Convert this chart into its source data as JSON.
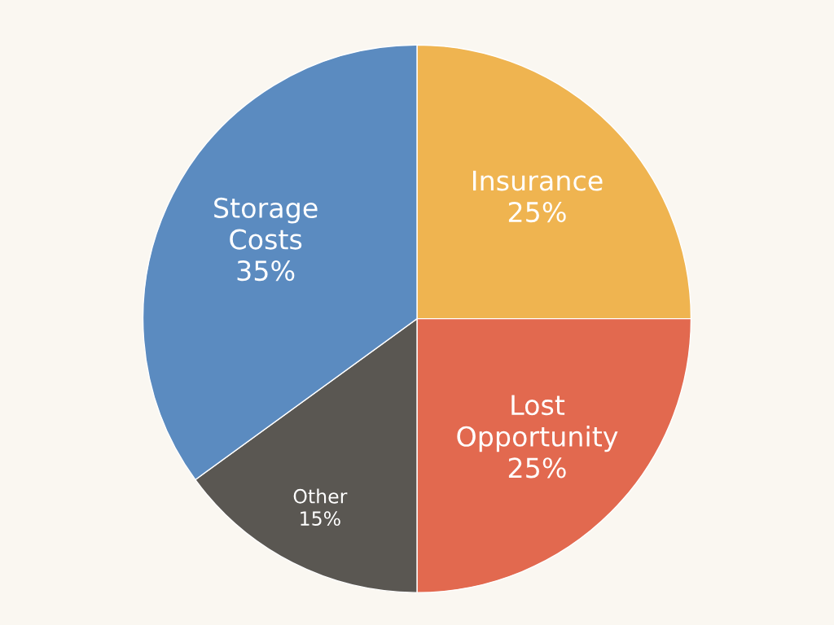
{
  "chart_data": {
    "type": "pie",
    "categories": [
      "Insurance",
      "Lost\nOpportunity",
      "Other",
      "Storage\nCosts"
    ],
    "values": [
      25,
      25,
      15,
      35
    ],
    "value_labels": [
      "25%",
      "25%",
      "15%",
      "35%"
    ],
    "colors": [
      "#efb450",
      "#e2694f",
      "#5a5752",
      "#5b8bc0"
    ]
  }
}
